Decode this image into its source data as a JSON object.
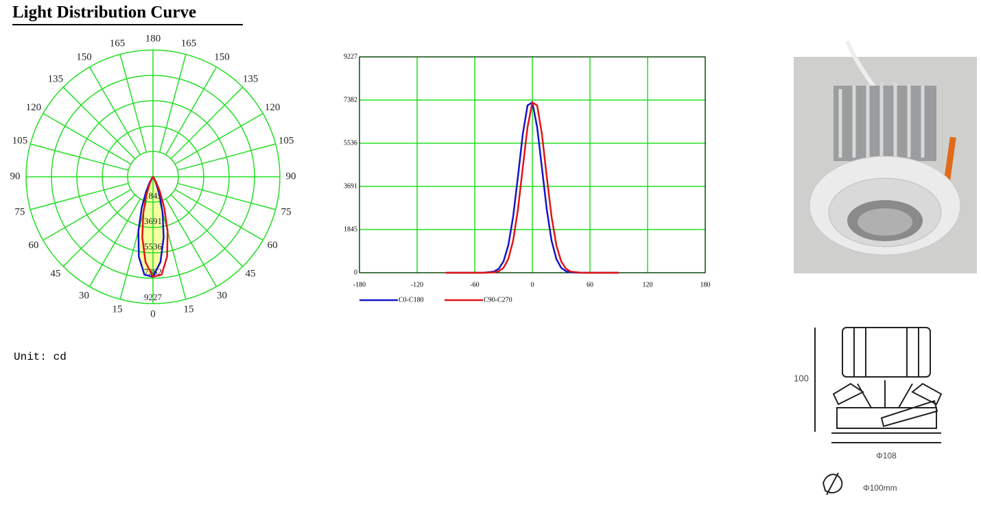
{
  "title": "Light Distribution Curve",
  "unit": "Unit: cd",
  "chart_data": [
    {
      "type": "polar",
      "x": [
        -90,
        -80,
        -70,
        -60,
        -50,
        -40,
        -35,
        -30,
        -25,
        -20,
        -15,
        -10,
        -5,
        0,
        5,
        10,
        15,
        20,
        25,
        30,
        35,
        40,
        50,
        60,
        70,
        80,
        90
      ],
      "series": [
        {
          "color": "#1414c8",
          "values": [
            0,
            0,
            0,
            0,
            5,
            49,
            168,
            487,
            1177,
            2396,
            4104,
            5912,
            7153,
            7280,
            6225,
            4478,
            2707,
            1374,
            588,
            210,
            64,
            16,
            0,
            0,
            0,
            0,
            0
          ]
        },
        {
          "color": "#e01414",
          "values": [
            0,
            0,
            0,
            0,
            0,
            16,
            64,
            210,
            588,
            1374,
            2707,
            4478,
            6225,
            7280,
            7153,
            5912,
            4104,
            2396,
            1177,
            487,
            168,
            49,
            5,
            0,
            0,
            0,
            0
          ]
        }
      ],
      "rlim": [
        0,
        9227
      ],
      "rticks": [
        1845,
        3691,
        5536,
        7382,
        9227
      ],
      "angle_ticks": [
        0,
        15,
        30,
        45,
        60,
        75,
        90,
        105,
        120,
        135,
        150,
        165,
        180
      ],
      "grid": true,
      "grid_color": "#22dd22",
      "fill_color": "#f4ffa0"
    },
    {
      "type": "line",
      "x": [
        -90,
        -80,
        -70,
        -60,
        -50,
        -40,
        -35,
        -30,
        -25,
        -20,
        -15,
        -10,
        -5,
        0,
        5,
        10,
        15,
        20,
        25,
        30,
        35,
        40,
        50,
        60,
        70,
        80,
        90
      ],
      "series": [
        {
          "name": "C0-C180",
          "color": "#1414c8",
          "values": [
            0,
            0,
            0,
            0,
            5,
            49,
            168,
            487,
            1177,
            2396,
            4104,
            5912,
            7153,
            7280,
            6225,
            4478,
            2707,
            1374,
            588,
            210,
            64,
            16,
            0,
            0,
            0,
            0,
            0
          ]
        },
        {
          "name": "C90-C270",
          "color": "#e01414",
          "values": [
            0,
            0,
            0,
            0,
            0,
            16,
            64,
            210,
            588,
            1374,
            2707,
            4478,
            6225,
            7280,
            7153,
            5912,
            4104,
            2396,
            1177,
            487,
            168,
            49,
            5,
            0,
            0,
            0,
            0
          ]
        }
      ],
      "xlim": [
        -180,
        180
      ],
      "xticks": [
        -180,
        -120,
        -60,
        0,
        60,
        120,
        180
      ],
      "ylim": [
        0,
        9227
      ],
      "yticks": [
        0,
        1845,
        3691,
        5536,
        7382,
        9227
      ],
      "grid": true,
      "grid_color": "#22dd22",
      "legend": "bottom"
    }
  ],
  "drawing": {
    "height": "100",
    "diameter": "Φ108",
    "cutout": "Φ100mm"
  }
}
